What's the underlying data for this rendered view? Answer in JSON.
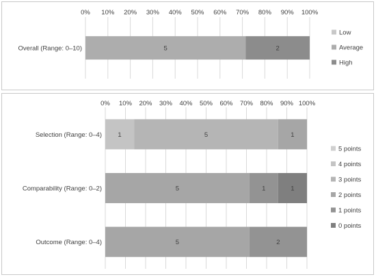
{
  "chart_data": [
    {
      "type": "bar",
      "orientation": "horizontal",
      "stacked": true,
      "percent_stacked": true,
      "categories": [
        "Overall (Range: 0–10)"
      ],
      "x_ticks": [
        "0%",
        "10%",
        "20%",
        "30%",
        "40%",
        "50%",
        "60%",
        "70%",
        "80%",
        "90%",
        "100%"
      ],
      "xlim": [
        0,
        100
      ],
      "legend_position": "right",
      "grid": true,
      "series": [
        {
          "name": "Low",
          "color": "#c8c8c8",
          "values": [
            0
          ],
          "labels": [
            ""
          ]
        },
        {
          "name": "Average",
          "color": "#adadad",
          "values": [
            5
          ],
          "labels": [
            "5"
          ]
        },
        {
          "name": "High",
          "color": "#8c8c8c",
          "values": [
            2
          ],
          "labels": [
            "2"
          ]
        }
      ]
    },
    {
      "type": "bar",
      "orientation": "horizontal",
      "stacked": true,
      "percent_stacked": true,
      "categories": [
        "Selection (Range: 0–4)",
        "Comparability  (Range: 0–2)",
        "Outcome  (Range: 0–4)"
      ],
      "x_ticks": [
        "0%",
        "10%",
        "20%",
        "30%",
        "40%",
        "50%",
        "60%",
        "70%",
        "80%",
        "90%",
        "100%"
      ],
      "xlim": [
        0,
        100
      ],
      "legend_position": "right",
      "grid": true,
      "series": [
        {
          "name": "5 points",
          "color": "#d0d0d0",
          "values": [
            0,
            0,
            0
          ],
          "labels": [
            "",
            "",
            ""
          ]
        },
        {
          "name": "4 points",
          "color": "#c4c4c4",
          "values": [
            1,
            0,
            0
          ],
          "labels": [
            "1",
            "",
            ""
          ]
        },
        {
          "name": "3 points",
          "color": "#b5b5b5",
          "values": [
            5,
            0,
            0
          ],
          "labels": [
            "5",
            "",
            ""
          ]
        },
        {
          "name": "2 points",
          "color": "#a6a6a6",
          "values": [
            1,
            5,
            5
          ],
          "labels": [
            "1",
            "5",
            "5"
          ]
        },
        {
          "name": "1 points",
          "color": "#939393",
          "values": [
            0,
            1,
            2
          ],
          "labels": [
            "",
            "1",
            "2"
          ]
        },
        {
          "name": "0 points",
          "color": "#7f7f7f",
          "values": [
            0,
            1,
            0
          ],
          "labels": [
            "",
            "1",
            ""
          ]
        }
      ]
    }
  ]
}
